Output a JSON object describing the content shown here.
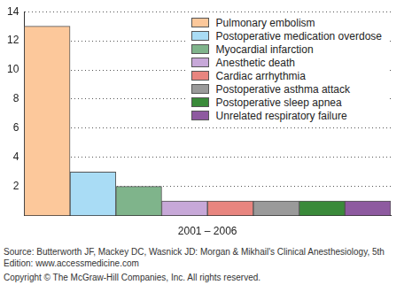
{
  "chart_data": {
    "type": "bar",
    "categories": [
      "2001 – 2006"
    ],
    "series": [
      {
        "name": "Pulmonary embolism",
        "color": "#fcc89b",
        "values": [
          13
        ]
      },
      {
        "name": "Postoperative medication overdose",
        "color": "#a9dcf5",
        "values": [
          3
        ]
      },
      {
        "name": "Myocardial infarction",
        "color": "#7fb48b",
        "values": [
          2
        ]
      },
      {
        "name": "Anesthetic death",
        "color": "#c7a8d8",
        "values": [
          1
        ]
      },
      {
        "name": "Cardiac arrhythmia",
        "color": "#e8857f",
        "values": [
          1
        ]
      },
      {
        "name": "Postoperative asthma attack",
        "color": "#9a9a9a",
        "values": [
          1
        ]
      },
      {
        "name": "Postoperative sleep apnea",
        "color": "#3a8a3a",
        "values": [
          1
        ]
      },
      {
        "name": "Unrelated respiratory failure",
        "color": "#8e5aa0",
        "values": [
          1
        ]
      }
    ],
    "ylim": [
      0,
      14
    ],
    "yticks": [
      2,
      4,
      6,
      8,
      10,
      12,
      14
    ],
    "grid": true,
    "legend": "upper right",
    "annotations": [
      "Source: Butterworth JF, Mackey DC, Wasnick JD: Morgan & Mikhail's Clinical Anesthesiology, 5th Edition: www.accessmedicine.com",
      "Copyright © The McGraw-Hill Companies, Inc. All rights reserved."
    ]
  }
}
